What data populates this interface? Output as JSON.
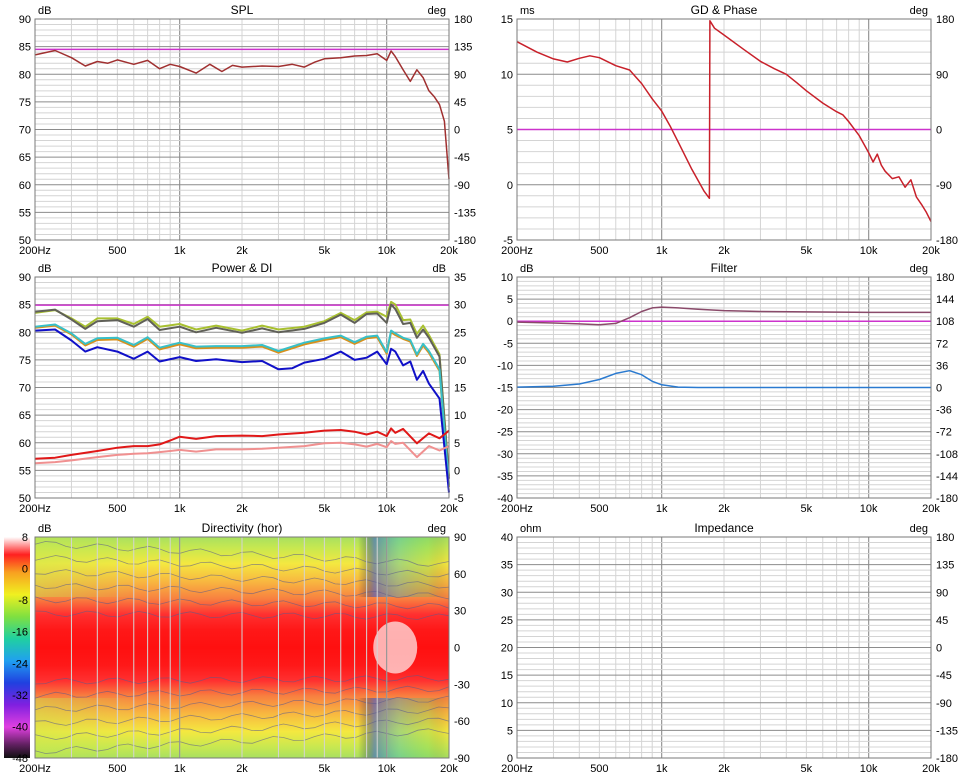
{
  "palette": {
    "grid_major": "#8c8c8c",
    "grid_minor": "#d4d4d4",
    "frame": "#7a7a7a",
    "ref_line": "#cc33cc",
    "spl": "#a03030",
    "gd_phase": "#c8202a",
    "power_top": "#606058",
    "power_green": "#a8c030",
    "power_orange": "#d8901c",
    "power_cyan": "#38c0c8",
    "power_blue": "#1010c8",
    "di_red": "#e01818",
    "di_pink": "#f09090",
    "filter_mag": "#8a4a6a",
    "filter_blue": "#2a7ad0"
  },
  "x_axis": {
    "min_hz": 200,
    "max_hz": 20000,
    "tick_labels": [
      {
        "hz": 200,
        "text": "200Hz"
      },
      {
        "hz": 500,
        "text": "500"
      },
      {
        "hz": 1000,
        "text": "1k"
      },
      {
        "hz": 2000,
        "text": "2k"
      },
      {
        "hz": 5000,
        "text": "5k"
      },
      {
        "hz": 10000,
        "text": "10k"
      },
      {
        "hz": 20000,
        "text": "20k"
      }
    ]
  },
  "chart_data": [
    {
      "type": "line",
      "title": "SPL",
      "ylabel": "dB",
      "ylabel_right": "deg",
      "ylim": [
        50,
        90
      ],
      "yticks": [
        90,
        85,
        80,
        75,
        70,
        65,
        60,
        55,
        50
      ],
      "ylim_right": [
        -180,
        180
      ],
      "yticks_right": [
        180,
        135,
        90,
        45,
        0,
        -45,
        -90,
        -135,
        -180
      ],
      "xscale": "log",
      "grid": true,
      "reference_line": {
        "value": 84.5,
        "color": "#cc33cc"
      },
      "series": [
        {
          "color": "#a03030",
          "x": [
            200,
            250,
            300,
            350,
            400,
            450,
            500,
            600,
            700,
            800,
            900,
            1000,
            1200,
            1400,
            1600,
            1800,
            2000,
            2500,
            3000,
            3500,
            4000,
            4500,
            5000,
            6000,
            7000,
            8000,
            9000,
            10000,
            10500,
            11000,
            12000,
            13000,
            14000,
            15000,
            16000,
            17000,
            18000,
            19000,
            20000
          ],
          "y": [
            83.5,
            84.3,
            83,
            81.5,
            82.3,
            82,
            82.6,
            81.8,
            82.5,
            81,
            81.8,
            81.4,
            80.2,
            81.8,
            80.5,
            81.6,
            81.3,
            81.5,
            81.4,
            81.8,
            81.3,
            82.2,
            82.8,
            83,
            83.3,
            83.4,
            83.7,
            82.5,
            84.2,
            83.2,
            80.8,
            78.7,
            80.8,
            79.4,
            77,
            75.9,
            74.5,
            71.5,
            61
          ]
        }
      ]
    },
    {
      "type": "line",
      "title": "GD & Phase",
      "ylabel": "ms",
      "ylabel_right": "deg",
      "ylim": [
        -5,
        15
      ],
      "yticks": [
        15,
        10,
        5,
        0,
        -5
      ],
      "ylim_right": [
        -180,
        180
      ],
      "yticks_right": [
        180,
        90,
        0,
        -90,
        -180
      ],
      "xscale": "log",
      "grid": true,
      "reference_line": {
        "value": 5,
        "color": "#cc33cc"
      },
      "series": [
        {
          "color": "#c8202a",
          "x": [
            200,
            250,
            300,
            350,
            400,
            450,
            500,
            600,
            700,
            800,
            900,
            1000,
            1100,
            1200,
            1400,
            1600,
            1700,
            1710,
            1800,
            2000,
            2500,
            3000,
            3500,
            4000,
            4500,
            5000,
            6000,
            7000,
            7500,
            8000,
            9000,
            10000,
            10500,
            11000,
            11500,
            12000,
            13000,
            14000,
            15000,
            16000,
            17000,
            18000,
            19000,
            20000
          ],
          "y": [
            143,
            126,
            115,
            110,
            116,
            120,
            117,
            104,
            97,
            75,
            50,
            30,
            5,
            -20,
            -65,
            -100,
            -112,
            177,
            165,
            154,
            130,
            111,
            99,
            90,
            76,
            63,
            43,
            29,
            24,
            13,
            -10,
            -38,
            -53,
            -40,
            -58,
            -68,
            -80,
            -77,
            -94,
            -82,
            -110,
            -122,
            -135,
            -150
          ],
          "axis": "right"
        }
      ]
    },
    {
      "type": "line",
      "title": "Power & DI",
      "ylabel": "dB",
      "ylabel_right": "dB",
      "ylim": [
        50,
        90
      ],
      "yticks": [
        90,
        85,
        80,
        75,
        70,
        65,
        60,
        55,
        50
      ],
      "ylim_right": [
        -5,
        35
      ],
      "yticks_right": [
        35,
        30,
        25,
        20,
        15,
        10,
        5,
        0,
        -5
      ],
      "xscale": "log",
      "grid": true,
      "reference_line": {
        "value": 84.9,
        "color": "#cc33cc"
      },
      "series": [
        {
          "color": "#a8c030",
          "x": [
            200,
            250,
            300,
            350,
            400,
            500,
            600,
            700,
            800,
            1000,
            1200,
            1500,
            2000,
            2500,
            3000,
            4000,
            5000,
            6000,
            7000,
            8000,
            9000,
            10000,
            10500,
            11000,
            12000,
            13000,
            14000,
            15000,
            16000,
            18000,
            20000
          ],
          "y": [
            83.5,
            84,
            82.5,
            81,
            82.5,
            82.5,
            81.5,
            82.8,
            81,
            81.5,
            80.5,
            81.2,
            80.3,
            81.2,
            80.5,
            81,
            82,
            83.5,
            82.2,
            83.6,
            83.7,
            82.8,
            85.5,
            85,
            82.2,
            82.3,
            79.7,
            81.2,
            79.5,
            76,
            54
          ]
        },
        {
          "color": "#606058",
          "x": [
            200,
            250,
            300,
            350,
            400,
            500,
            600,
            700,
            800,
            1000,
            1200,
            1500,
            2000,
            2500,
            3000,
            4000,
            5000,
            6000,
            7000,
            8000,
            9000,
            10000,
            10500,
            11000,
            12000,
            13000,
            14000,
            15000,
            16000,
            18000,
            20000
          ],
          "y": [
            83.7,
            84.1,
            82.3,
            80.6,
            82,
            82.2,
            81,
            82.4,
            80.4,
            81,
            80,
            80.8,
            79.9,
            80.7,
            80,
            80.6,
            81.7,
            83.2,
            81.7,
            83.3,
            83.4,
            81.7,
            85,
            84.2,
            81.5,
            81.7,
            79,
            80.5,
            79,
            75.6,
            53.5
          ]
        },
        {
          "color": "#d8901c",
          "x": [
            200,
            250,
            300,
            350,
            400,
            500,
            600,
            700,
            800,
            1000,
            1200,
            1500,
            2000,
            2500,
            3000,
            4000,
            5000,
            6000,
            7000,
            8000,
            9000,
            10000,
            10500,
            11000,
            12000,
            13000,
            14000,
            15000,
            16000,
            18000,
            20000
          ],
          "y": [
            80.8,
            81.2,
            79.6,
            77.6,
            78.6,
            78.7,
            77.4,
            78.8,
            76.9,
            77.8,
            77.1,
            77.2,
            77.2,
            77.4,
            76.3,
            77.8,
            78.6,
            79.1,
            77.9,
            78.9,
            79.1,
            76.1,
            80,
            79.5,
            78.8,
            78.3,
            75.7,
            77.6,
            76.3,
            73,
            52
          ]
        },
        {
          "color": "#38c0c8",
          "x": [
            200,
            250,
            300,
            350,
            400,
            500,
            600,
            700,
            800,
            1000,
            1200,
            1500,
            2000,
            2500,
            3000,
            4000,
            5000,
            6000,
            7000,
            8000,
            9000,
            10000,
            10500,
            11000,
            12000,
            13000,
            14000,
            15000,
            16000,
            18000,
            20000
          ],
          "y": [
            81,
            81.4,
            79.8,
            77.9,
            78.9,
            79,
            77.7,
            79.1,
            77.2,
            78.1,
            77.4,
            77.5,
            77.5,
            77.7,
            76.6,
            78.1,
            78.9,
            79.4,
            78.2,
            79.2,
            79.4,
            76.4,
            80.3,
            79.8,
            79,
            78.6,
            76,
            77.9,
            76.6,
            73.3,
            52.3
          ]
        },
        {
          "color": "#1010c8",
          "x": [
            200,
            250,
            300,
            350,
            400,
            500,
            600,
            700,
            800,
            1000,
            1200,
            1500,
            2000,
            2500,
            3000,
            3500,
            4000,
            5000,
            6000,
            7000,
            8000,
            9000,
            10000,
            10500,
            11000,
            12000,
            13000,
            14000,
            15000,
            16000,
            18000,
            20000
          ],
          "y": [
            80.3,
            80.5,
            78.5,
            76.5,
            77.3,
            76.5,
            75.2,
            76.5,
            74.7,
            75.5,
            74.8,
            75.1,
            74.6,
            74.8,
            73.3,
            73.5,
            74.5,
            75.2,
            76.5,
            75,
            75.4,
            76.5,
            74.2,
            77,
            76.5,
            74,
            74.7,
            71.4,
            73,
            70.7,
            68,
            51
          ]
        },
        {
          "color": "#e01818",
          "x": [
            200,
            250,
            300,
            400,
            500,
            600,
            700,
            800,
            900,
            1000,
            1200,
            1500,
            2000,
            2500,
            3000,
            4000,
            5000,
            6000,
            7000,
            8000,
            9000,
            10000,
            10500,
            11000,
            12000,
            14000,
            16000,
            18000,
            20000
          ],
          "y": [
            2.1,
            2.3,
            2.8,
            3.5,
            4.1,
            4.4,
            4.4,
            4.7,
            5.4,
            6.1,
            5.7,
            6.2,
            6.3,
            6.2,
            6.5,
            6.8,
            7.2,
            7.3,
            7.0,
            6.5,
            7.0,
            6.2,
            7.6,
            6.8,
            7.5,
            4.9,
            6.7,
            5.8,
            7.2
          ],
          "axis": "right"
        },
        {
          "color": "#f09090",
          "x": [
            200,
            250,
            300,
            400,
            500,
            600,
            700,
            800,
            900,
            1000,
            1200,
            1500,
            2000,
            2500,
            3000,
            4000,
            5000,
            6000,
            7000,
            8000,
            9000,
            10000,
            10500,
            11000,
            12000,
            14000,
            16000,
            18000,
            20000
          ],
          "y": [
            1.3,
            1.5,
            1.8,
            2.4,
            2.8,
            3.0,
            3.1,
            3.3,
            3.5,
            3.7,
            3.4,
            3.8,
            3.8,
            3.9,
            4.1,
            4.4,
            4.9,
            5.0,
            4.7,
            4.3,
            4.8,
            4.2,
            5.3,
            4.8,
            5.0,
            2.4,
            4.4,
            3.6,
            4.4
          ],
          "axis": "right"
        }
      ]
    },
    {
      "type": "line",
      "title": "Filter",
      "ylabel": "dB",
      "ylabel_right": "deg",
      "ylim": [
        -40,
        10
      ],
      "yticks": [
        10,
        5,
        0,
        -5,
        -10,
        -15,
        -20,
        -25,
        -30,
        -35,
        -40
      ],
      "ylim_right": [
        -180,
        180
      ],
      "yticks_right": [
        180,
        144,
        108,
        72,
        36,
        0,
        -36,
        -72,
        -108,
        -144,
        -180
      ],
      "xscale": "log",
      "grid": true,
      "reference_line": {
        "value": 0,
        "color": "#cc33cc"
      },
      "series": [
        {
          "color": "#8a4a6a",
          "x": [
            200,
            300,
            400,
            500,
            600,
            700,
            800,
            900,
            1000,
            1200,
            1500,
            2000,
            3000,
            5000,
            10000,
            20000
          ],
          "y": [
            -0.2,
            -0.4,
            -0.6,
            -0.8,
            -0.5,
            0.8,
            2.2,
            3.0,
            3.2,
            3.0,
            2.7,
            2.4,
            2.2,
            2.1,
            2.0,
            2.0
          ]
        },
        {
          "color": "#2a7ad0",
          "x": [
            200,
            300,
            400,
            500,
            600,
            700,
            800,
            900,
            1000,
            1200,
            1500,
            2000,
            3000,
            5000,
            10000,
            20000
          ],
          "y": [
            -14.9,
            -14.7,
            -14.2,
            -13.2,
            -11.8,
            -11.2,
            -12.1,
            -13.6,
            -14.4,
            -14.9,
            -15.0,
            -15.0,
            -15.0,
            -15.0,
            -15.0,
            -15.0
          ]
        }
      ]
    },
    {
      "type": "heatmap",
      "title": "Directivity (hor)",
      "ylabel": "dB",
      "ylabel_right": "deg",
      "ylim_right": [
        -90,
        90
      ],
      "yticks_right": [
        90,
        60,
        30,
        0,
        -30,
        -60,
        -90
      ],
      "xscale": "log",
      "colorbar_ticks": [
        8,
        0,
        -8,
        -16,
        -24,
        -32,
        -40,
        -48
      ],
      "colorbar_range": [
        -48,
        8
      ]
    },
    {
      "type": "line",
      "title": "Impedance",
      "ylabel": "ohm",
      "ylabel_right": "deg",
      "ylim": [
        0,
        40
      ],
      "yticks": [
        40,
        35,
        30,
        25,
        20,
        15,
        10,
        5,
        0
      ],
      "ylim_right": [
        -180,
        180
      ],
      "yticks_right": [
        180,
        135,
        90,
        45,
        0,
        -45,
        -90,
        -135,
        -180
      ],
      "xscale": "log",
      "grid": true,
      "series": []
    }
  ]
}
